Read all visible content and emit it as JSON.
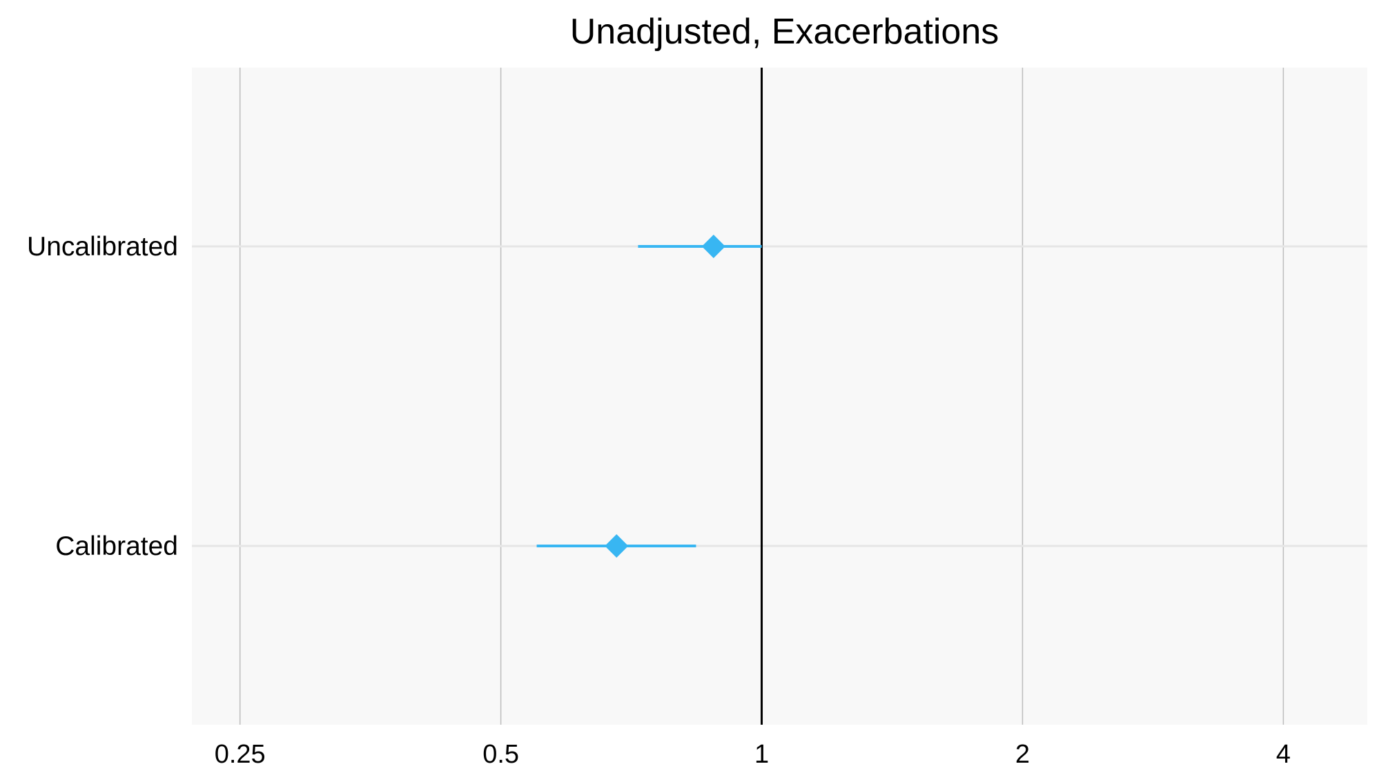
{
  "chart_data": {
    "type": "scatter",
    "subtype": "forest-plot",
    "title": "Unadjusted, Exacerbations",
    "xlabel": "",
    "ylabel": "",
    "x_scale": "log2",
    "xlim": [
      0.22,
      5.0
    ],
    "x_ticks": [
      0.25,
      0.5,
      1,
      2,
      4
    ],
    "x_tick_labels": [
      "0.25",
      "0.5",
      "1",
      "2",
      "4"
    ],
    "reference_line_x": 1,
    "categories": [
      "Uncalibrated",
      "Calibrated"
    ],
    "estimates": [
      {
        "label": "Uncalibrated",
        "estimate": 0.88,
        "lower": 0.72,
        "upper": 1.0
      },
      {
        "label": "Calibrated",
        "estimate": 0.68,
        "lower": 0.55,
        "upper": 0.84
      }
    ],
    "grid": true,
    "legend": "none",
    "colors": {
      "point": "#38B6F2",
      "panel_background": "#F8F8F8",
      "grid_vertical": "#BFBFBF",
      "grid_horizontal": "#E6E6E6",
      "reference_line": "#000000"
    }
  }
}
